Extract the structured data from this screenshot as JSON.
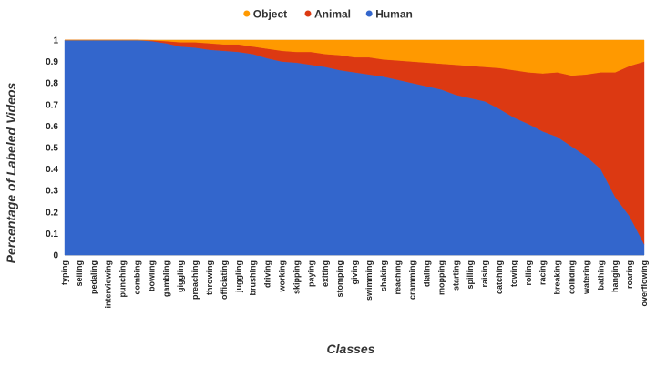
{
  "chart_data": {
    "type": "area",
    "stacked": true,
    "xlabel": "Classes",
    "ylabel": "Percentage of Labeled Videos",
    "ylim": [
      0,
      1
    ],
    "yticks": [
      "0",
      "0.1",
      "0.2",
      "0.3",
      "0.4",
      "0.5",
      "0.6",
      "0.7",
      "0.8",
      "0.9",
      "1"
    ],
    "legend_position": "top-center",
    "categories": [
      "typing",
      "selling",
      "pedaling",
      "interviewing",
      "punching",
      "combing",
      "bowling",
      "gambling",
      "giggling",
      "preaching",
      "throwing",
      "officiating",
      "juggling",
      "brushing",
      "driving",
      "working",
      "skipping",
      "paying",
      "exiting",
      "stomping",
      "giving",
      "swimming",
      "shaking",
      "reaching",
      "cramming",
      "dialing",
      "mopping",
      "starting",
      "spilling",
      "raising",
      "catching",
      "towing",
      "rolling",
      "racing",
      "breaking",
      "colliding",
      "watering",
      "bathing",
      "hanging",
      "roaring",
      "overflowing"
    ],
    "series": [
      {
        "name": "Human",
        "color": "#3366cc",
        "values": [
          1.0,
          1.0,
          1.0,
          1.0,
          1.0,
          1.0,
          0.995,
          0.985,
          0.97,
          0.965,
          0.955,
          0.95,
          0.945,
          0.935,
          0.915,
          0.9,
          0.895,
          0.885,
          0.875,
          0.86,
          0.85,
          0.84,
          0.83,
          0.815,
          0.8,
          0.785,
          0.77,
          0.745,
          0.73,
          0.715,
          0.68,
          0.64,
          0.61,
          0.575,
          0.55,
          0.505,
          0.46,
          0.4,
          0.27,
          0.18,
          0.05
        ]
      },
      {
        "name": "Animal",
        "color": "#dc3912",
        "values": [
          0.0,
          0.0,
          0.0,
          0.0,
          0.0,
          0.0,
          0.004,
          0.01,
          0.02,
          0.025,
          0.03,
          0.03,
          0.035,
          0.035,
          0.045,
          0.05,
          0.05,
          0.06,
          0.06,
          0.07,
          0.07,
          0.08,
          0.08,
          0.09,
          0.1,
          0.11,
          0.12,
          0.14,
          0.15,
          0.16,
          0.19,
          0.22,
          0.24,
          0.27,
          0.3,
          0.33,
          0.38,
          0.45,
          0.58,
          0.7,
          0.85
        ]
      },
      {
        "name": "Object",
        "color": "#ff9900",
        "values": [
          0.0,
          0.0,
          0.0,
          0.0,
          0.0,
          0.0,
          0.001,
          0.005,
          0.01,
          0.01,
          0.015,
          0.02,
          0.02,
          0.03,
          0.04,
          0.05,
          0.055,
          0.055,
          0.065,
          0.07,
          0.08,
          0.08,
          0.09,
          0.095,
          0.1,
          0.105,
          0.11,
          0.115,
          0.12,
          0.125,
          0.13,
          0.14,
          0.15,
          0.155,
          0.15,
          0.165,
          0.16,
          0.15,
          0.15,
          0.12,
          0.1
        ]
      }
    ]
  }
}
